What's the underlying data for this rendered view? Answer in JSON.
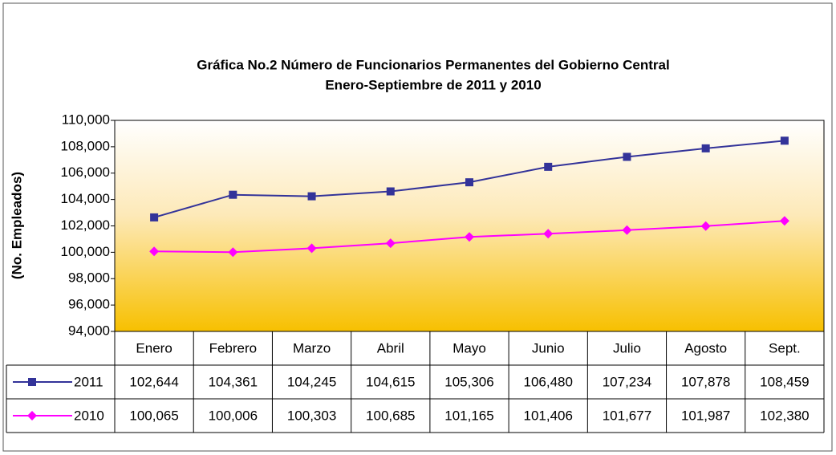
{
  "chart_data": {
    "type": "line",
    "title": "Gráfica No.2 Número de Funcionarios Permanentes del Gobierno Central",
    "subtitle": "Enero-Septiembre de 2011 y 2010",
    "y_label": "(No. Empleados)",
    "categories": [
      "Enero",
      "Febrero",
      "Marzo",
      "Abril",
      "Mayo",
      "Junio",
      "Julio",
      "Agosto",
      "Sept."
    ],
    "series": [
      {
        "name": "2011",
        "color": "#333399",
        "marker": "square",
        "values": [
          102644,
          104361,
          104245,
          104615,
          105306,
          106480,
          107234,
          107878,
          108459
        ],
        "value_labels": [
          "102,644",
          "104,361",
          "104,245",
          "104,615",
          "105,306",
          "106,480",
          "107,234",
          "107,878",
          "108,459"
        ]
      },
      {
        "name": "2010",
        "color": "#ff00ff",
        "marker": "diamond",
        "values": [
          100065,
          100006,
          100303,
          100685,
          101165,
          101406,
          101677,
          101987,
          102380
        ],
        "value_labels": [
          "100,065",
          "100,006",
          "100,303",
          "100,685",
          "101,165",
          "101,406",
          "101,677",
          "101,987",
          "102,380"
        ]
      }
    ],
    "ylim": [
      94000,
      110000
    ],
    "yticks": [
      {
        "value": 94000,
        "label": "94,000"
      },
      {
        "value": 96000,
        "label": "96,000"
      },
      {
        "value": 98000,
        "label": "98,000"
      },
      {
        "value": 100000,
        "label": "100,000"
      },
      {
        "value": 102000,
        "label": "102,000"
      },
      {
        "value": 104000,
        "label": "104,000"
      },
      {
        "value": 106000,
        "label": "106,000"
      },
      {
        "value": 108000,
        "label": "108,000"
      },
      {
        "value": 110000,
        "label": "110,000"
      }
    ],
    "grid": false,
    "data_table": true
  }
}
